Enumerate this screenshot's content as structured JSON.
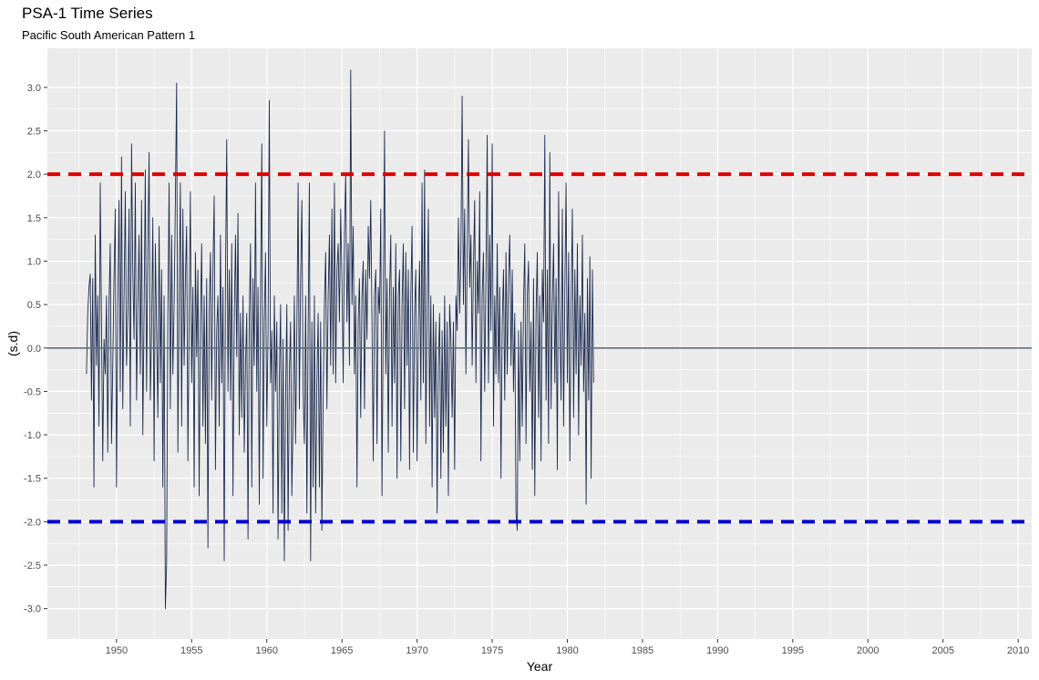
{
  "chart_data": {
    "type": "line",
    "title": "PSA-1 Time Series",
    "subtitle": "Pacific South American Pattern 1",
    "xlabel": "Year",
    "ylabel": "(s.d)",
    "xlim": [
      1945.4,
      2010.9
    ],
    "ylim": [
      -3.35,
      3.45
    ],
    "x_ticks": [
      "1950",
      "1955",
      "1960",
      "1965",
      "1970",
      "1975",
      "1980",
      "1985",
      "1990",
      "1995",
      "2000",
      "2005",
      "2010"
    ],
    "y_ticks": [
      "3.0",
      "2.5",
      "2.0",
      "1.5",
      "1.0",
      "0.5",
      "0.0",
      "-0.5",
      "-1.0",
      "-1.5",
      "-2.0",
      "-2.5",
      "-3.0"
    ],
    "grid": true,
    "panel_color": "#ebebeb",
    "series": [
      {
        "color": "#1b2a4e",
        "x_start": 1948.0,
        "x_step_months": 1,
        "values": [
          -0.3,
          0.4,
          0.7,
          0.85,
          -0.6,
          0.8,
          -1.6,
          1.3,
          -0.2,
          0.6,
          -0.9,
          1.9,
          0.3,
          -1.3,
          0.1,
          -0.3,
          0.6,
          -1.2,
          0.5,
          1.2,
          -1.1,
          -0.2,
          0.8,
          1.6,
          -1.6,
          0.5,
          1.7,
          -0.5,
          2.2,
          -0.7,
          0.6,
          1.8,
          -0.2,
          0.4,
          1.6,
          -0.9,
          2.35,
          0.9,
          0.1,
          1.9,
          -0.6,
          0.5,
          1.3,
          -0.3,
          1.7,
          -1.0,
          0.4,
          2.05,
          -0.5,
          1.1,
          2.25,
          -0.6,
          0.2,
          1.5,
          -1.3,
          1.2,
          0.2,
          -0.8,
          1.4,
          -0.4,
          0.9,
          -1.6,
          0.6,
          -3.0,
          -2.5,
          0.4,
          1.9,
          -0.7,
          1.3,
          -0.3,
          0.5,
          1.7,
          3.05,
          -1.2,
          0.6,
          1.9,
          -0.9,
          1.6,
          -0.2,
          0.8,
          1.4,
          -1.3,
          0.4,
          1.8,
          -0.4,
          0.7,
          -1.6,
          1.1,
          -0.1,
          0.9,
          -1.7,
          0.3,
          1.2,
          -0.9,
          0.6,
          -1.1,
          0.8,
          -2.3,
          0.4,
          1.1,
          -0.6,
          0.9,
          1.75,
          -1.4,
          0.2,
          0.6,
          -0.9,
          1.3,
          -0.4,
          0.7,
          -2.45,
          0.8,
          2.4,
          -0.5,
          0.9,
          -0.6,
          1.2,
          -1.7,
          0.3,
          1.3,
          -0.1,
          1.55,
          -1.0,
          0.4,
          -0.8,
          0.6,
          -1.2,
          -0.2,
          0.4,
          -2.2,
          0.3,
          1.2,
          -1.6,
          0.8,
          -0.2,
          1.9,
          -0.5,
          0.7,
          -1.8,
          0.6,
          2.35,
          -1.5,
          0.3,
          1.1,
          -0.9,
          0.2,
          2.85,
          -0.4,
          0.2,
          -1.9,
          0.6,
          -0.5,
          0.3,
          -2.2,
          -0.4,
          0.5,
          -1.9,
          0.1,
          -2.45,
          -0.6,
          0.5,
          -2.1,
          -0.3,
          0.3,
          -1.7,
          -0.8,
          0.6,
          -1.1,
          0.2,
          1.9,
          -0.7,
          0.8,
          1.7,
          -0.5,
          -1.1,
          0.6,
          -1.9,
          0.2,
          1.9,
          -2.45,
          0.3,
          -1.6,
          0.6,
          -1.9,
          -0.4,
          0.4,
          -1.6,
          0.3,
          -2.1,
          -0.6,
          0.5,
          1.1,
          -0.7,
          0.6,
          1.3,
          -0.2,
          1.6,
          -0.3,
          1.9,
          -0.4,
          0.9,
          1.2,
          0.3,
          1.6,
          0.8,
          -0.4,
          1.3,
          2.0,
          0.3,
          1.2,
          -0.2,
          3.2,
          0.5,
          1.4,
          -0.3,
          0.6,
          -1.6,
          0.3,
          0.8,
          -0.8,
          0.6,
          1.0,
          -0.7,
          0.9,
          0.1,
          1.4,
          0.8,
          1.7,
          0.3,
          -1.3,
          0.6,
          0.9,
          -1.1,
          0.7,
          0.4,
          1.6,
          -1.7,
          0.4,
          2.5,
          -0.3,
          0.8,
          -1.2,
          0.6,
          1.3,
          -0.9,
          0.7,
          -0.4,
          1.2,
          -1.5,
          0.6,
          0.9,
          -1.3,
          0.5,
          1.2,
          -0.7,
          1.1,
          -0.2,
          0.9,
          -1.4,
          0.6,
          1.4,
          -1.2,
          0.4,
          0.9,
          -1.3,
          0.3,
          1.0,
          -0.6,
          1.9,
          -0.4,
          2.05,
          -1.1,
          0.5,
          1.6,
          -0.9,
          0.6,
          -1.6,
          0.5,
          -0.8,
          0.3,
          -1.9,
          -0.2,
          0.4,
          -1.5,
          0.2,
          -1.2,
          0.6,
          -0.9,
          0.3,
          -1.7,
          0.5,
          0.1,
          -0.8,
          0.3,
          -1.4,
          0.6,
          0.2,
          1.5,
          0.4,
          1.1,
          2.9,
          0.5,
          1.6,
          -0.3,
          1.1,
          2.4,
          0.7,
          1.3,
          -0.2,
          0.9,
          1.7,
          -0.4,
          1.0,
          0.4,
          1.8,
          -1.3,
          0.6,
          1.1,
          -0.5,
          0.8,
          2.45,
          -0.4,
          1.3,
          0.2,
          2.35,
          -0.9,
          0.6,
          -0.3,
          1.2,
          -0.4,
          0.7,
          -1.5,
          0.3,
          0.9,
          -0.6,
          1.1,
          -0.3,
          0.8,
          1.3,
          -0.2,
          0.9,
          -0.5,
          0.4,
          -1.9,
          -2.1,
          0.2,
          -1.3,
          0.3,
          -0.9,
          0.5,
          1.2,
          -1.1,
          0.6,
          1.0,
          -0.5,
          0.3,
          -1.4,
          0.8,
          -1.7,
          0.4,
          1.1,
          -0.8,
          0.6,
          -1.3,
          0.9,
          0.3,
          2.45,
          -0.6,
          0.9,
          -1.1,
          2.25,
          -0.7,
          0.5,
          1.2,
          -0.4,
          0.8,
          -1.4,
          1.8,
          0.3,
          -0.6,
          1.6,
          -0.9,
          0.7,
          1.9,
          -0.4,
          1.1,
          -1.3,
          0.5,
          1.6,
          -0.8,
          0.9,
          -0.3,
          1.2,
          -1.0,
          0.6,
          -0.2,
          1.3,
          -0.5,
          0.4,
          -1.8,
          0.8,
          -0.6,
          1.05,
          -1.5,
          0.9,
          -0.4
        ]
      }
    ],
    "hlines": [
      {
        "y": 2.0,
        "color": "#e00000",
        "style": "dashed"
      },
      {
        "y": 0.0,
        "color": "#5e6f86",
        "style": "solid"
      },
      {
        "y": -2.0,
        "color": "#0000cc",
        "style": "dashed"
      }
    ]
  }
}
